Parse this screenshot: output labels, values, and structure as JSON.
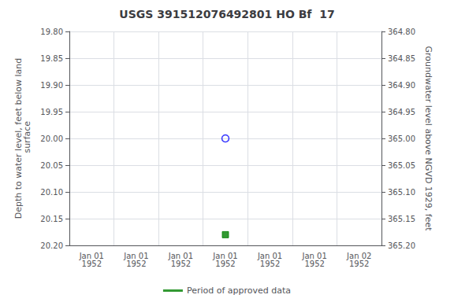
{
  "chart_data": {
    "type": "scatter",
    "title": "USGS 391512076492801 HO Bf  17",
    "y_label": "Depth to water level, feet below land\n surface",
    "y2_label": "Groundwater level above NGVD 1929, feet",
    "categories": [
      "Jan 01\n1952",
      "Jan 01\n1952",
      "Jan 01\n1952",
      "Jan 01\n1952",
      "Jan 01\n1952",
      "Jan 01\n1952",
      "Jan 02\n1952"
    ],
    "series": [
      {
        "color": "blue",
        "marker": "circle_open",
        "values": [
          null,
          null,
          null,
          20.0,
          null,
          null,
          null
        ]
      },
      {
        "name": "Period of approved data",
        "color": "#008000",
        "marker": "square",
        "values": [
          null,
          null,
          null,
          20.18,
          null,
          null,
          null
        ]
      }
    ],
    "ylim": [
      20.2,
      19.8
    ],
    "yticks": [
      {
        "value": 19.8,
        "label": "19.80"
      },
      {
        "value": 19.85,
        "label": "19.85"
      },
      {
        "value": 19.9,
        "label": "19.90"
      },
      {
        "value": 19.95,
        "label": "19.95"
      },
      {
        "value": 20.0,
        "label": "20.00"
      },
      {
        "value": 20.05,
        "label": "20.05"
      },
      {
        "value": 20.1,
        "label": "20.10"
      },
      {
        "value": 20.15,
        "label": "20.15"
      },
      {
        "value": 20.2,
        "label": "20.20"
      }
    ],
    "y2lim": [
      365.2,
      364.8
    ],
    "y2ticks": [
      {
        "value": 365.2,
        "label": "365.20"
      },
      {
        "value": 365.15,
        "label": "365.15"
      },
      {
        "value": 365.1,
        "label": "365.10"
      },
      {
        "value": 365.05,
        "label": "365.05"
      },
      {
        "value": 365.0,
        "label": "365.00"
      },
      {
        "value": 364.95,
        "label": "364.95"
      },
      {
        "value": 364.9,
        "label": "364.90"
      },
      {
        "value": 364.85,
        "label": "364.85"
      },
      {
        "value": 364.8,
        "label": "364.80"
      }
    ],
    "grid": true,
    "legend": "bottom"
  }
}
